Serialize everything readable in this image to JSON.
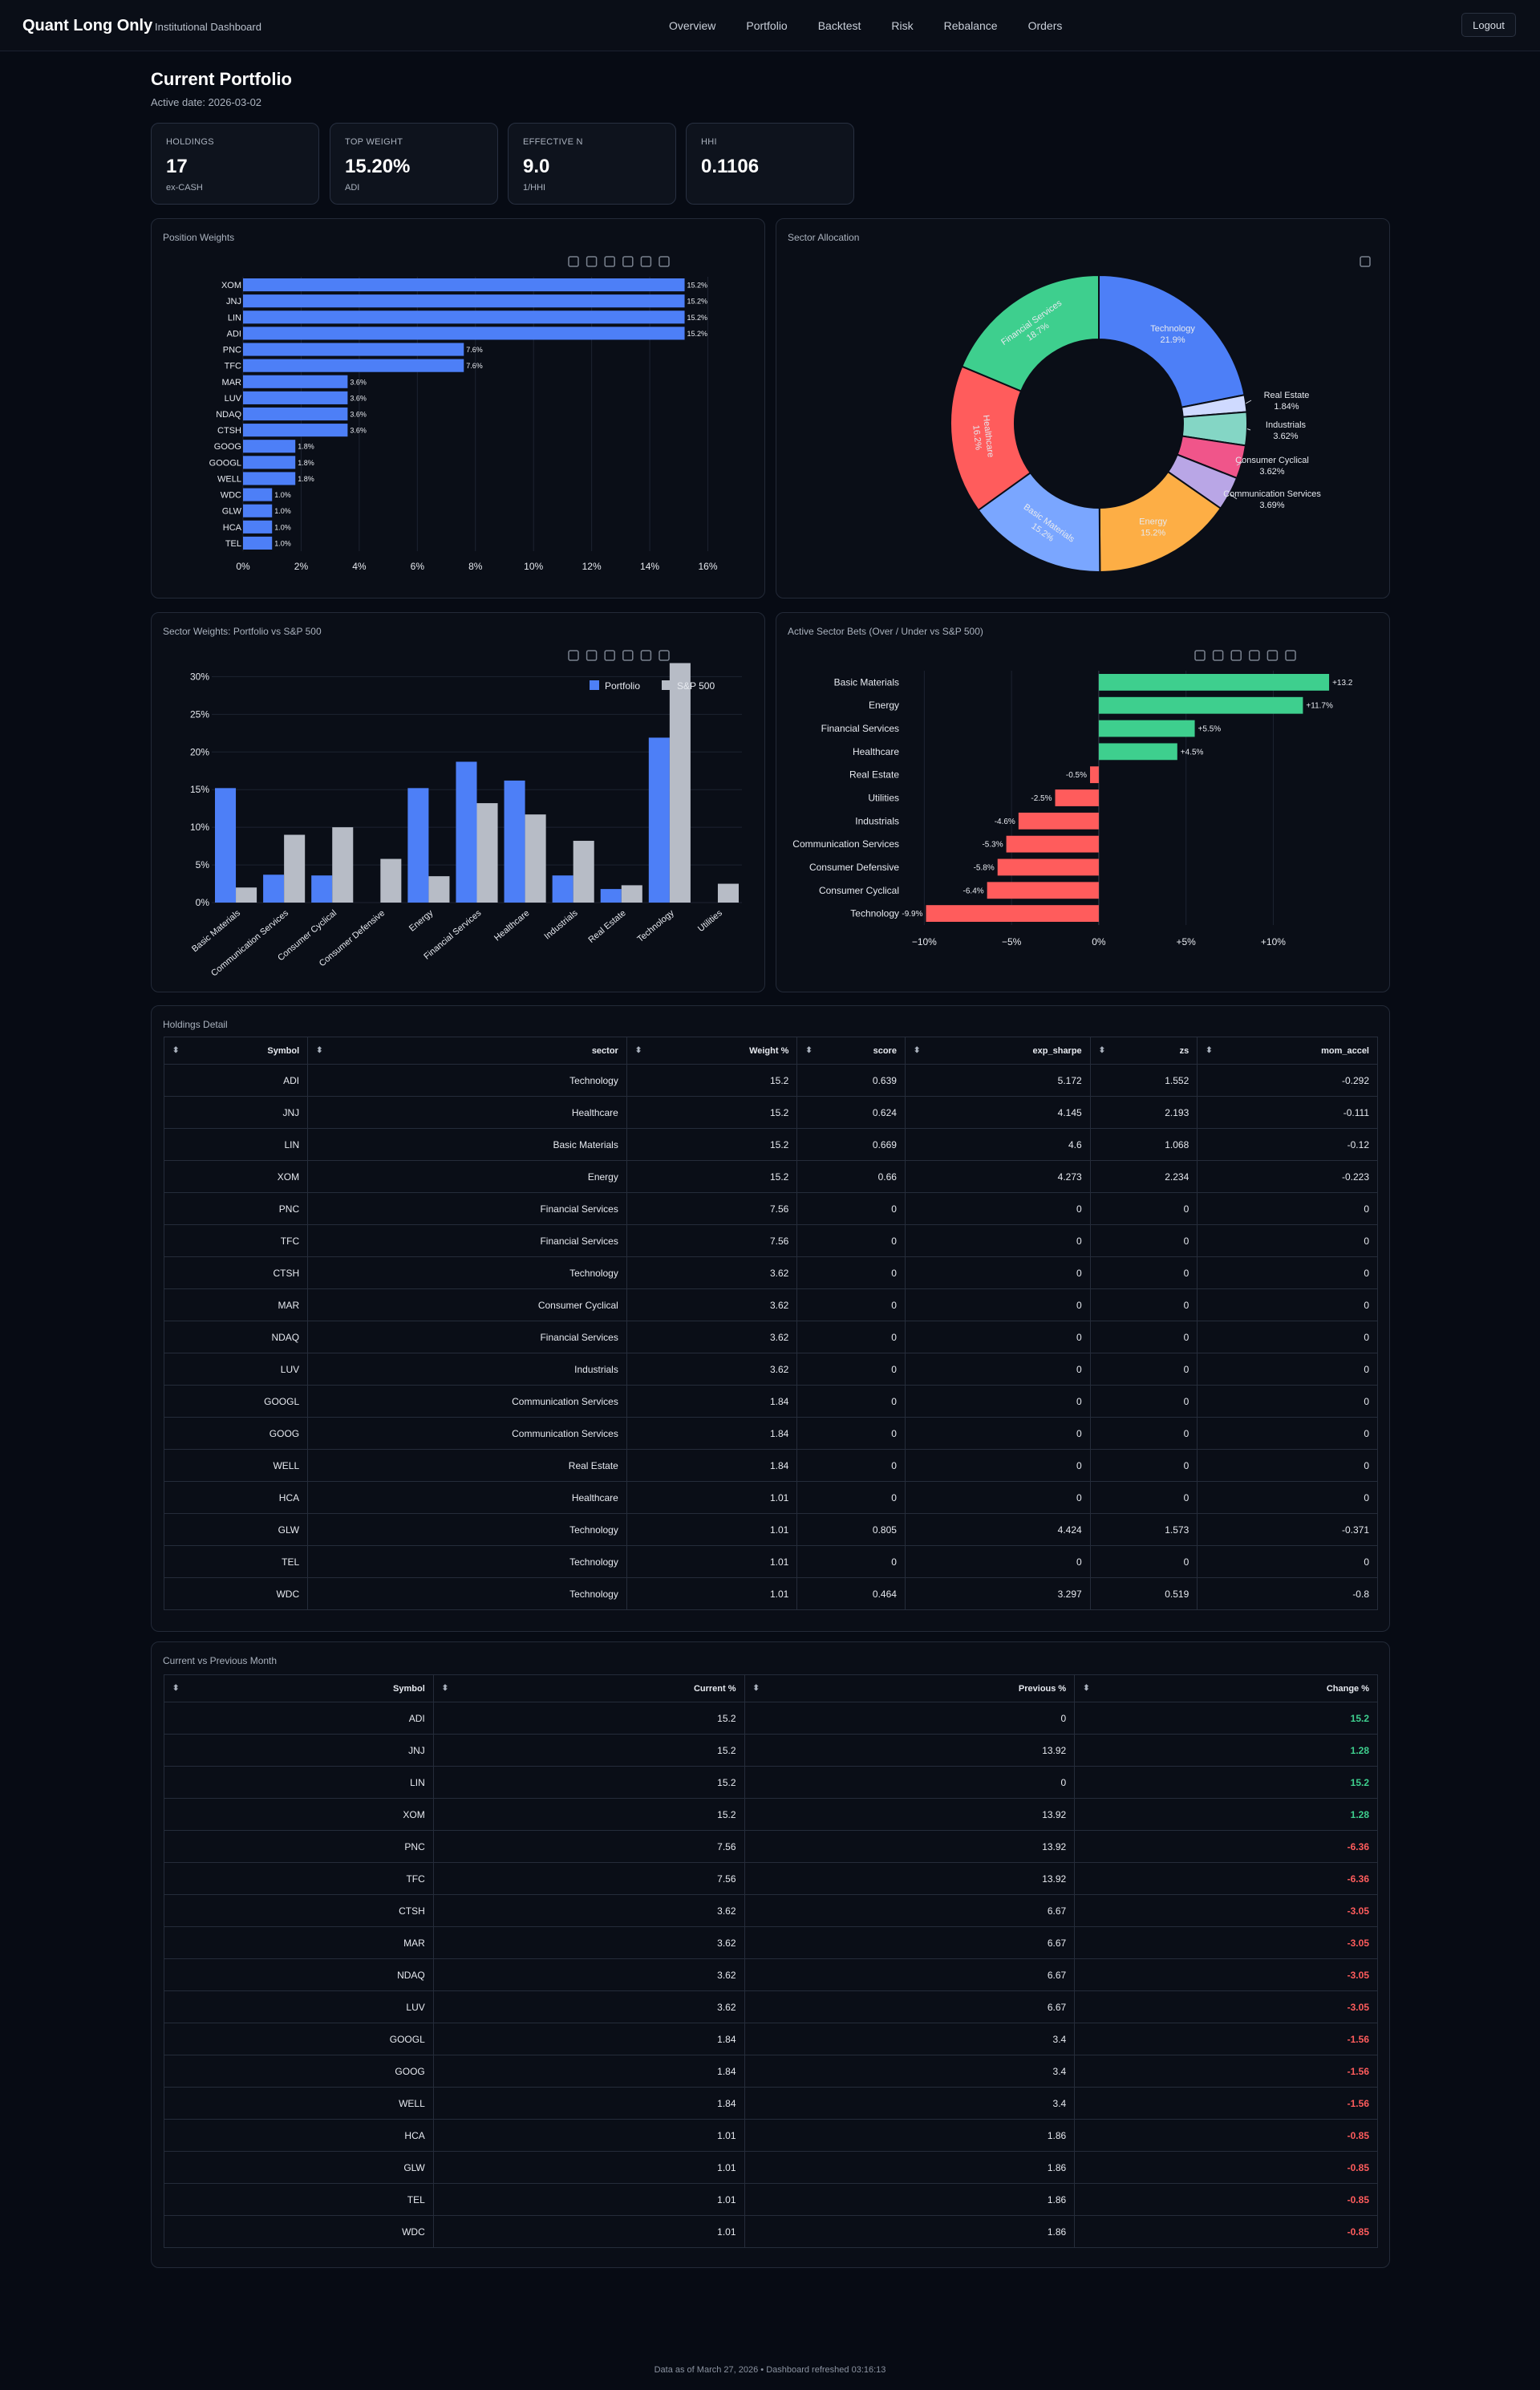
{
  "nav": {
    "brand": "Quant Long Only",
    "brand_sub": "Institutional Dashboard",
    "links": [
      "Overview",
      "Portfolio",
      "Backtest",
      "Risk",
      "Rebalance",
      "Orders"
    ],
    "logout": "Logout"
  },
  "page": {
    "title": "Current Portfolio",
    "active_date": "Active date: 2026-03-02"
  },
  "kpis": [
    {
      "label": "HOLDINGS",
      "value": "17",
      "sub": "ex-CASH"
    },
    {
      "label": "TOP WEIGHT",
      "value": "15.20%",
      "sub": "ADI"
    },
    {
      "label": "EFFECTIVE N",
      "value": "9.0",
      "sub": "1/HHI"
    },
    {
      "label": "HHI",
      "value": "0.1106",
      "sub": ""
    }
  ],
  "cards": {
    "position_weights": "Position Weights",
    "sector_allocation": "Sector Allocation",
    "sector_weights": "Sector Weights: Portfolio vs S&P 500",
    "active_bets": "Active Sector Bets (Over / Under vs S&P 500)",
    "holdings_detail": "Holdings Detail",
    "current_vs_previous": "Current vs Previous Month"
  },
  "chart_data": [
    {
      "type": "bar",
      "orientation": "horizontal",
      "title": "Position Weights",
      "categories": [
        "XOM",
        "JNJ",
        "LIN",
        "ADI",
        "PNC",
        "TFC",
        "MAR",
        "LUV",
        "NDAQ",
        "CTSH",
        "GOOG",
        "GOOGL",
        "WELL",
        "WDC",
        "GLW",
        "HCA",
        "TEL"
      ],
      "values": [
        15.2,
        15.2,
        15.2,
        15.2,
        7.6,
        7.6,
        3.6,
        3.6,
        3.6,
        3.6,
        1.8,
        1.8,
        1.8,
        1.0,
        1.0,
        1.0,
        1.0
      ],
      "labels": [
        "15.2%",
        "15.2%",
        "15.2%",
        "15.2%",
        "7.6%",
        "7.6%",
        "3.6%",
        "3.6%",
        "3.6%",
        "3.6%",
        "1.8%",
        "1.8%",
        "1.8%",
        "1.0%",
        "1.0%",
        "1.0%",
        "1.0%"
      ],
      "xticks": [
        "0%",
        "2%",
        "4%",
        "6%",
        "8%",
        "10%",
        "12%",
        "14%",
        "16%"
      ],
      "xlim": [
        0,
        16.4
      ],
      "grid": true,
      "color": "#4d7ff7"
    },
    {
      "type": "pie",
      "donut": true,
      "title": "Sector Allocation",
      "slices": [
        {
          "name": "Technology",
          "value": 21.9,
          "label": "21.9%",
          "color": "#4d7ff7"
        },
        {
          "name": "Real Estate",
          "value": 1.84,
          "label": "1.84%",
          "color": "#cfdaff"
        },
        {
          "name": "Industrials",
          "value": 3.62,
          "label": "3.62%",
          "color": "#84d6c5"
        },
        {
          "name": "Consumer Cyclical",
          "value": 3.62,
          "label": "3.62%",
          "color": "#f0558a"
        },
        {
          "name": "Communication Services",
          "value": 3.69,
          "label": "3.69%",
          "color": "#b9a6e6"
        },
        {
          "name": "Energy",
          "value": 15.2,
          "label": "15.2%",
          "color": "#fdae45"
        },
        {
          "name": "Basic Materials",
          "value": 15.2,
          "label": "15.2%",
          "color": "#7aa6ff"
        },
        {
          "name": "Healthcare",
          "value": 16.2,
          "label": "16.2%",
          "color": "#ff5c5c"
        },
        {
          "name": "Financial Services",
          "value": 18.7,
          "label": "18.7%",
          "color": "#3ecf8e"
        }
      ]
    },
    {
      "type": "bar",
      "title": "Sector Weights: Portfolio vs S&P 500",
      "categories": [
        "Basic Materials",
        "Communication Services",
        "Consumer Cyclical",
        "Consumer Defensive",
        "Energy",
        "Financial Services",
        "Healthcare",
        "Industrials",
        "Real Estate",
        "Technology",
        "Utilities"
      ],
      "series": [
        {
          "name": "Portfolio",
          "color": "#4d7ff7",
          "values": [
            15.2,
            3.7,
            3.6,
            0,
            15.2,
            18.7,
            16.2,
            3.6,
            1.8,
            21.9,
            0
          ]
        },
        {
          "name": "S&P 500",
          "color": "#b7bcc6",
          "values": [
            2.0,
            9.0,
            10.0,
            5.8,
            3.5,
            13.2,
            11.7,
            8.2,
            2.3,
            31.8,
            2.5
          ]
        }
      ],
      "yticks": [
        "0%",
        "5%",
        "10%",
        "15%",
        "20%",
        "25%",
        "30%"
      ],
      "ylim": [
        0,
        31
      ],
      "legend": "top-right",
      "grid": true
    },
    {
      "type": "bar",
      "orientation": "horizontal",
      "title": "Active Sector Bets (Over / Under vs S&P 500)",
      "categories": [
        "Basic Materials",
        "Energy",
        "Financial Services",
        "Healthcare",
        "Real Estate",
        "Utilities",
        "Industrials",
        "Communication Services",
        "Consumer Defensive",
        "Consumer Cyclical",
        "Technology"
      ],
      "values": [
        13.2,
        11.7,
        5.5,
        4.5,
        -0.5,
        -2.5,
        -4.6,
        -5.3,
        -5.8,
        -6.4,
        -9.9
      ],
      "labels": [
        "+13.2",
        "+11.7%",
        "+5.5%",
        "+4.5%",
        "-0.5%",
        "-2.5%",
        "-4.6%",
        "-5.3%",
        "-5.8%",
        "-6.4%",
        "-9.9%"
      ],
      "xticks": [
        "−10%",
        "−5%",
        "0%",
        "+5%",
        "+10%"
      ],
      "xlim": [
        -10.2,
        14.3
      ],
      "pos_color": "#3ecf8e",
      "neg_color": "#ff5c5c"
    }
  ],
  "holdings": {
    "headers": [
      "Symbol",
      "sector",
      "Weight %",
      "score",
      "exp_sharpe",
      "zs",
      "mom_accel"
    ],
    "rows": [
      [
        "ADI",
        "Technology",
        "15.2",
        "0.639",
        "5.172",
        "1.552",
        "-0.292"
      ],
      [
        "JNJ",
        "Healthcare",
        "15.2",
        "0.624",
        "4.145",
        "2.193",
        "-0.111"
      ],
      [
        "LIN",
        "Basic Materials",
        "15.2",
        "0.669",
        "4.6",
        "1.068",
        "-0.12"
      ],
      [
        "XOM",
        "Energy",
        "15.2",
        "0.66",
        "4.273",
        "2.234",
        "-0.223"
      ],
      [
        "PNC",
        "Financial Services",
        "7.56",
        "0",
        "0",
        "0",
        "0"
      ],
      [
        "TFC",
        "Financial Services",
        "7.56",
        "0",
        "0",
        "0",
        "0"
      ],
      [
        "CTSH",
        "Technology",
        "3.62",
        "0",
        "0",
        "0",
        "0"
      ],
      [
        "MAR",
        "Consumer Cyclical",
        "3.62",
        "0",
        "0",
        "0",
        "0"
      ],
      [
        "NDAQ",
        "Financial Services",
        "3.62",
        "0",
        "0",
        "0",
        "0"
      ],
      [
        "LUV",
        "Industrials",
        "3.62",
        "0",
        "0",
        "0",
        "0"
      ],
      [
        "GOOGL",
        "Communication Services",
        "1.84",
        "0",
        "0",
        "0",
        "0"
      ],
      [
        "GOOG",
        "Communication Services",
        "1.84",
        "0",
        "0",
        "0",
        "0"
      ],
      [
        "WELL",
        "Real Estate",
        "1.84",
        "0",
        "0",
        "0",
        "0"
      ],
      [
        "HCA",
        "Healthcare",
        "1.01",
        "0",
        "0",
        "0",
        "0"
      ],
      [
        "GLW",
        "Technology",
        "1.01",
        "0.805",
        "4.424",
        "1.573",
        "-0.371"
      ],
      [
        "TEL",
        "Technology",
        "1.01",
        "0",
        "0",
        "0",
        "0"
      ],
      [
        "WDC",
        "Technology",
        "1.01",
        "0.464",
        "3.297",
        "0.519",
        "-0.8"
      ]
    ]
  },
  "comparison": {
    "headers": [
      "Symbol",
      "Current %",
      "Previous %",
      "Change %"
    ],
    "rows": [
      [
        "ADI",
        "15.2",
        "0",
        "15.2"
      ],
      [
        "JNJ",
        "15.2",
        "13.92",
        "1.28"
      ],
      [
        "LIN",
        "15.2",
        "0",
        "15.2"
      ],
      [
        "XOM",
        "15.2",
        "13.92",
        "1.28"
      ],
      [
        "PNC",
        "7.56",
        "13.92",
        "-6.36"
      ],
      [
        "TFC",
        "7.56",
        "13.92",
        "-6.36"
      ],
      [
        "CTSH",
        "3.62",
        "6.67",
        "-3.05"
      ],
      [
        "MAR",
        "3.62",
        "6.67",
        "-3.05"
      ],
      [
        "NDAQ",
        "3.62",
        "6.67",
        "-3.05"
      ],
      [
        "LUV",
        "3.62",
        "6.67",
        "-3.05"
      ],
      [
        "GOOGL",
        "1.84",
        "3.4",
        "-1.56"
      ],
      [
        "GOOG",
        "1.84",
        "3.4",
        "-1.56"
      ],
      [
        "WELL",
        "1.84",
        "3.4",
        "-1.56"
      ],
      [
        "HCA",
        "1.01",
        "1.86",
        "-0.85"
      ],
      [
        "GLW",
        "1.01",
        "1.86",
        "-0.85"
      ],
      [
        "TEL",
        "1.01",
        "1.86",
        "-0.85"
      ],
      [
        "WDC",
        "1.01",
        "1.86",
        "-0.85"
      ]
    ]
  },
  "footer": "Data as of March 27, 2026 • Dashboard refreshed 03:16:13"
}
